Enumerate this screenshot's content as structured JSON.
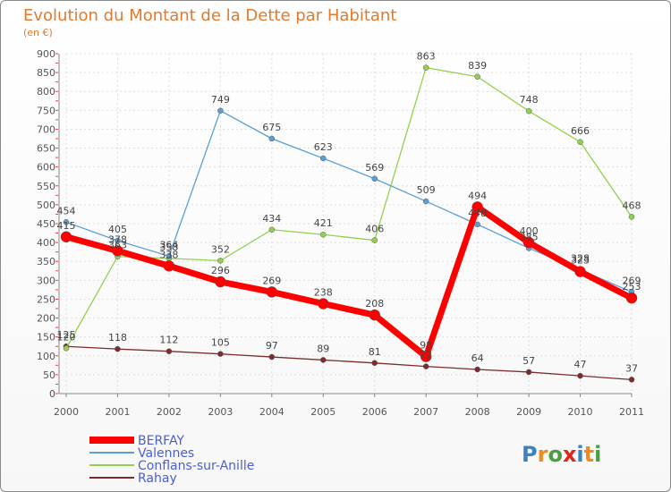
{
  "chart_data": {
    "type": "line",
    "title": "Evolution du Montant de la Dette par Habitant",
    "subtitle": "(en €)",
    "x": [
      "2000",
      "2001",
      "2002",
      "2003",
      "2004",
      "2005",
      "2006",
      "2007",
      "2008",
      "2009",
      "2010",
      "2011"
    ],
    "ylim": [
      0,
      900
    ],
    "yticks": [
      0,
      50,
      100,
      150,
      200,
      250,
      300,
      350,
      400,
      450,
      500,
      550,
      600,
      650,
      700,
      750,
      800,
      850,
      900
    ],
    "grid": true,
    "legend_position": "bottom-left",
    "series": [
      {
        "name": "BERFAY",
        "color": "#ff0000",
        "values": [
          415,
          378,
          338,
          296,
          269,
          238,
          208,
          98,
          494,
          400,
          323,
          253
        ]
      },
      {
        "name": "Valennes",
        "color": "#5a9fd4",
        "values": [
          454,
          405,
          364,
          749,
          675,
          623,
          569,
          509,
          448,
          385,
          328,
          269
        ]
      },
      {
        "name": "Conflans-sur-Anille",
        "color": "#92d050",
        "values": [
          120,
          363,
          358,
          352,
          434,
          421,
          406,
          863,
          839,
          748,
          666,
          468
        ]
      },
      {
        "name": "Rahay",
        "color": "#7b2d2d",
        "values": [
          125,
          118,
          112,
          105,
          97,
          89,
          81,
          72,
          64,
          57,
          47,
          37
        ]
      }
    ]
  },
  "logo": {
    "letters": [
      "P",
      "r",
      "o",
      "x",
      "i",
      "t",
      "i"
    ],
    "colors": [
      "#3b82c4",
      "#f08a1c",
      "#4a9e3f",
      "#e2231a",
      "#3b82c4",
      "#f08a1c",
      "#4a9e3f"
    ]
  }
}
